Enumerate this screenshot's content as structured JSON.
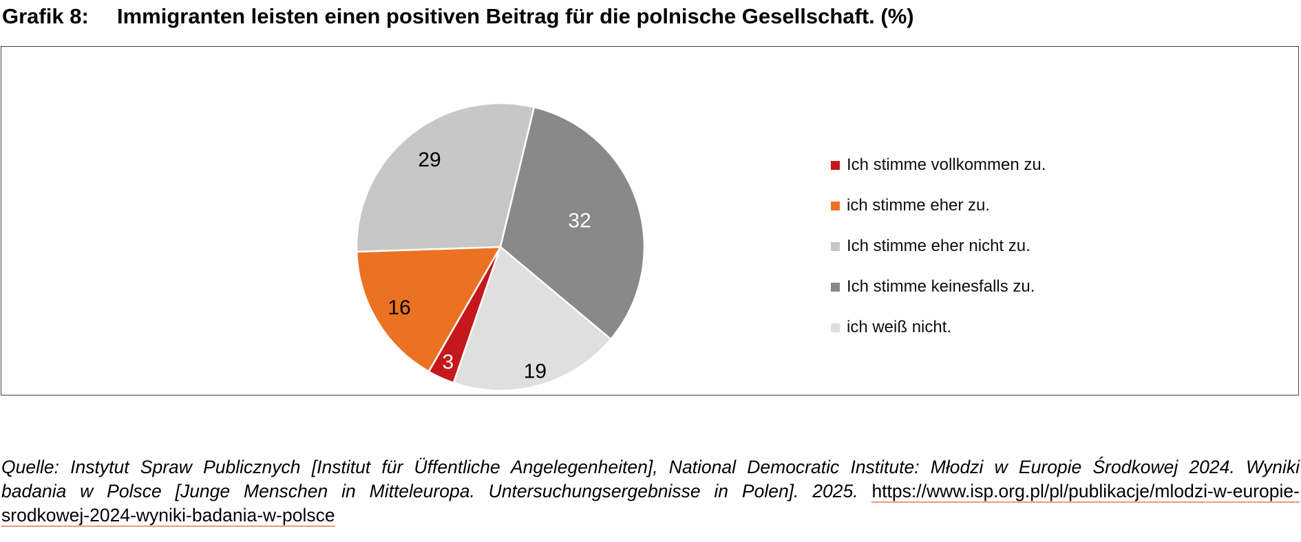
{
  "page": {
    "title_prefix": "Grafik 8:",
    "title": "Immigranten leisten einen positiven Beitrag für die polnische Gesellschaft. (%)"
  },
  "chart_data": {
    "type": "pie",
    "title": "Grafik 8: Immigranten leisten einen positiven Beitrag für die polnische Gesellschaft. (%)",
    "unit": "%",
    "categories": [
      "Ich stimme vollkommen zu.",
      "ich stimme eher zu.",
      "Ich stimme eher nicht zu.",
      "Ich stimme keinesfalls zu.",
      "ich weiß nicht."
    ],
    "values": [
      3,
      16,
      29,
      32,
      19
    ],
    "colors": [
      "#c5181c",
      "#eb7223",
      "#c7c7c7",
      "#898989",
      "#dfdfdf"
    ],
    "data_label_colors": [
      "#ffffff",
      "#000000",
      "#000000",
      "#ffffff",
      "#000000"
    ],
    "direction": "clockwise",
    "start_angle_clockwise_from_top_deg": 199,
    "legend_position": "right",
    "data_labels": "values"
  },
  "footer": {
    "line1": "Quelle: Instytut Spraw Publicznych [Institut für Üffentliche Angelegenheiten], National Democratic Institute: Młodzi w Europie Środkowej 2024. Wyniki",
    "line2_italic": "badania w Polsce [Junge Menschen in Mitteleuropa. Untersuchungsergebnisse in Polen]. 2025. ",
    "line2_link": "https://www.isp.org.pl/pl/publikacje/mlodzi-w-europie-",
    "line3_link": "srodkowej-2024-wyniki-badania-w-polsce",
    "link_underline_color": "#e89b7b"
  }
}
